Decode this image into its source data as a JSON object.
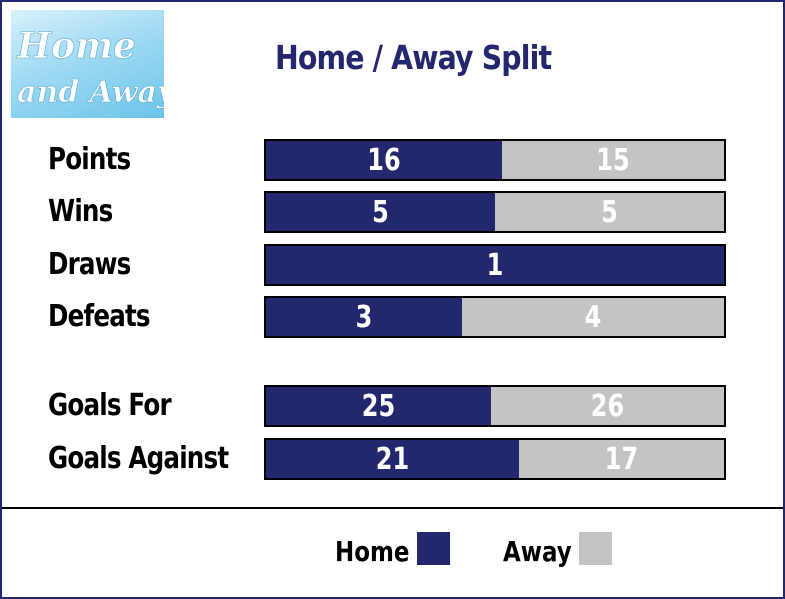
{
  "logo": {
    "line1": "Home",
    "line2": "and Away"
  },
  "chart_data": {
    "type": "bar",
    "orientation": "horizontal",
    "stacking": "100% stacked",
    "title": "Home / Away Split",
    "categories": [
      "Points",
      "Wins",
      "Draws",
      "Defeats",
      "Goals For",
      "Goals Against"
    ],
    "series": [
      {
        "name": "Home",
        "values": [
          16,
          5,
          1,
          3,
          25,
          21
        ]
      },
      {
        "name": "Away",
        "values": [
          15,
          5,
          0,
          4,
          26,
          17
        ]
      }
    ],
    "legend_position": "bottom",
    "grid": false,
    "colors": {
      "Home": "#23276e",
      "Away": "#c4c4c4"
    }
  }
}
